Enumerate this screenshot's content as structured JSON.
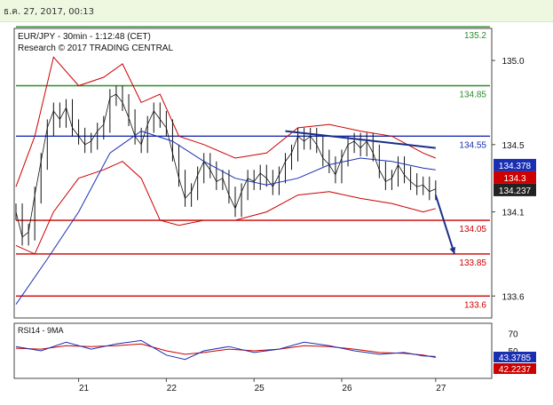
{
  "header": {
    "timestamp": "ธ.ค. 27, 2017, 00:13"
  },
  "chart_data": {
    "type": "line",
    "title": "EUR/JPY - 30min - 1:12:48 (CET)",
    "subtitle": "Research © 2017 TRADING CENTRAL",
    "ylim": [
      133.48,
      135.18
    ],
    "y_ticks": [
      133.6,
      134.1,
      134.5,
      135.0
    ],
    "y_tick_labels": [
      "133.6",
      "134.1",
      "134.5",
      "135.0"
    ],
    "x_labels": [
      "21",
      "22",
      "25",
      "26",
      "27"
    ],
    "resistance": [
      {
        "value": 135.2,
        "label": "135.2",
        "color": "#2e8b2e"
      },
      {
        "value": 134.85,
        "label": "134.85",
        "color": "#2e8b2e"
      }
    ],
    "pivot": {
      "value": 134.55,
      "label": "134.55",
      "color": "#1a2fb0"
    },
    "support": [
      {
        "value": 134.05,
        "label": "134.05",
        "color": "#cc0000"
      },
      {
        "value": 133.85,
        "label": "133.85",
        "color": "#cc0000"
      },
      {
        "value": 133.6,
        "label": "133.6",
        "color": "#cc0000"
      }
    ],
    "price_tags": [
      {
        "label": "134.378",
        "color": "#1a2fb0"
      },
      {
        "label": "134.3",
        "color": "#cc0000"
      },
      {
        "label": "134.237",
        "color": "#222222"
      }
    ],
    "price_series": [
      [
        0,
        134.1
      ],
      [
        1,
        133.95
      ],
      [
        2,
        133.98
      ],
      [
        3,
        134.2
      ],
      [
        4,
        134.4
      ],
      [
        5,
        134.6
      ],
      [
        6,
        134.7
      ],
      [
        7,
        134.65
      ],
      [
        8,
        134.72
      ],
      [
        9,
        134.6
      ],
      [
        10,
        134.55
      ],
      [
        11,
        134.5
      ],
      [
        12,
        134.52
      ],
      [
        13,
        134.58
      ],
      [
        14,
        134.62
      ],
      [
        15,
        134.78
      ],
      [
        16,
        134.8
      ],
      [
        17,
        134.75
      ],
      [
        18,
        134.66
      ],
      [
        19,
        134.55
      ],
      [
        20,
        134.5
      ],
      [
        21,
        134.62
      ],
      [
        22,
        134.7
      ],
      [
        23,
        134.65
      ],
      [
        24,
        134.6
      ],
      [
        25,
        134.45
      ],
      [
        26,
        134.3
      ],
      [
        27,
        134.18
      ],
      [
        28,
        134.22
      ],
      [
        29,
        134.32
      ],
      [
        30,
        134.4
      ],
      [
        31,
        134.35
      ],
      [
        32,
        134.28
      ],
      [
        33,
        134.3
      ],
      [
        34,
        134.2
      ],
      [
        35,
        134.12
      ],
      [
        36,
        134.22
      ],
      [
        37,
        134.3
      ],
      [
        38,
        134.28
      ],
      [
        39,
        134.33
      ],
      [
        40,
        134.3
      ],
      [
        41,
        134.25
      ],
      [
        42,
        134.32
      ],
      [
        43,
        134.4
      ],
      [
        44,
        134.45
      ],
      [
        45,
        134.55
      ],
      [
        46,
        134.52
      ],
      [
        47,
        134.55
      ],
      [
        48,
        134.5
      ],
      [
        49,
        134.42
      ],
      [
        50,
        134.38
      ],
      [
        51,
        134.32
      ],
      [
        52,
        134.42
      ],
      [
        53,
        134.5
      ],
      [
        54,
        134.52
      ],
      [
        55,
        134.48
      ],
      [
        56,
        134.52
      ],
      [
        57,
        134.45
      ],
      [
        58,
        134.35
      ],
      [
        59,
        134.28
      ],
      [
        60,
        134.3
      ],
      [
        61,
        134.38
      ],
      [
        62,
        134.32
      ],
      [
        63,
        134.28
      ],
      [
        64,
        134.25
      ],
      [
        65,
        134.26
      ],
      [
        66,
        134.22
      ],
      [
        67,
        134.237
      ]
    ],
    "ma_series": [
      [
        0,
        133.55
      ],
      [
        5,
        133.82
      ],
      [
        10,
        134.1
      ],
      [
        15,
        134.45
      ],
      [
        20,
        134.58
      ],
      [
        25,
        134.52
      ],
      [
        30,
        134.4
      ],
      [
        35,
        134.3
      ],
      [
        40,
        134.26
      ],
      [
        45,
        134.3
      ],
      [
        50,
        134.38
      ],
      [
        55,
        134.42
      ],
      [
        60,
        134.4
      ],
      [
        65,
        134.36
      ],
      [
        67,
        134.35
      ]
    ],
    "band_upper": [
      [
        0,
        134.25
      ],
      [
        3,
        134.55
      ],
      [
        6,
        135.02
      ],
      [
        10,
        134.85
      ],
      [
        14,
        134.9
      ],
      [
        17,
        134.98
      ],
      [
        20,
        134.75
      ],
      [
        23,
        134.8
      ],
      [
        26,
        134.55
      ],
      [
        30,
        134.5
      ],
      [
        35,
        134.42
      ],
      [
        40,
        134.45
      ],
      [
        45,
        134.6
      ],
      [
        50,
        134.62
      ],
      [
        55,
        134.58
      ],
      [
        60,
        134.55
      ],
      [
        65,
        134.45
      ],
      [
        67,
        134.42
      ]
    ],
    "band_lower": [
      [
        0,
        133.9
      ],
      [
        3,
        133.85
      ],
      [
        6,
        134.1
      ],
      [
        10,
        134.3
      ],
      [
        14,
        134.35
      ],
      [
        17,
        134.4
      ],
      [
        20,
        134.3
      ],
      [
        23,
        134.05
      ],
      [
        26,
        134.02
      ],
      [
        30,
        134.05
      ],
      [
        35,
        134.05
      ],
      [
        40,
        134.1
      ],
      [
        45,
        134.2
      ],
      [
        50,
        134.22
      ],
      [
        55,
        134.18
      ],
      [
        60,
        134.15
      ],
      [
        65,
        134.1
      ],
      [
        67,
        134.12
      ]
    ],
    "trendline": [
      [
        43,
        134.58
      ],
      [
        67,
        134.48
      ]
    ],
    "forecast_arrow": [
      [
        67,
        134.2
      ],
      [
        70,
        133.85
      ]
    ],
    "rsi_panel": {
      "label": "RSI14 - 9MA",
      "ylim": [
        20,
        80
      ],
      "y_ticks": [
        70,
        50
      ],
      "y_tick_labels": [
        "70",
        "50"
      ],
      "tags": [
        {
          "label": "43.3785",
          "color": "#1a2fb0"
        },
        {
          "label": "42.2237",
          "color": "#cc0000"
        }
      ],
      "rsi": [
        [
          0,
          55
        ],
        [
          4,
          50
        ],
        [
          8,
          60
        ],
        [
          12,
          52
        ],
        [
          16,
          58
        ],
        [
          20,
          62
        ],
        [
          24,
          45
        ],
        [
          27,
          40
        ],
        [
          30,
          50
        ],
        [
          34,
          55
        ],
        [
          38,
          48
        ],
        [
          42,
          52
        ],
        [
          46,
          60
        ],
        [
          50,
          56
        ],
        [
          54,
          50
        ],
        [
          58,
          46
        ],
        [
          62,
          48
        ],
        [
          65,
          44
        ],
        [
          67,
          43.3785
        ]
      ],
      "ma": [
        [
          0,
          53
        ],
        [
          4,
          52
        ],
        [
          8,
          56
        ],
        [
          12,
          55
        ],
        [
          16,
          56
        ],
        [
          20,
          58
        ],
        [
          24,
          50
        ],
        [
          27,
          46
        ],
        [
          30,
          48
        ],
        [
          34,
          52
        ],
        [
          38,
          50
        ],
        [
          42,
          52
        ],
        [
          46,
          56
        ],
        [
          50,
          55
        ],
        [
          54,
          52
        ],
        [
          58,
          48
        ],
        [
          62,
          47
        ],
        [
          65,
          45
        ],
        [
          67,
          42.2237
        ]
      ]
    }
  }
}
